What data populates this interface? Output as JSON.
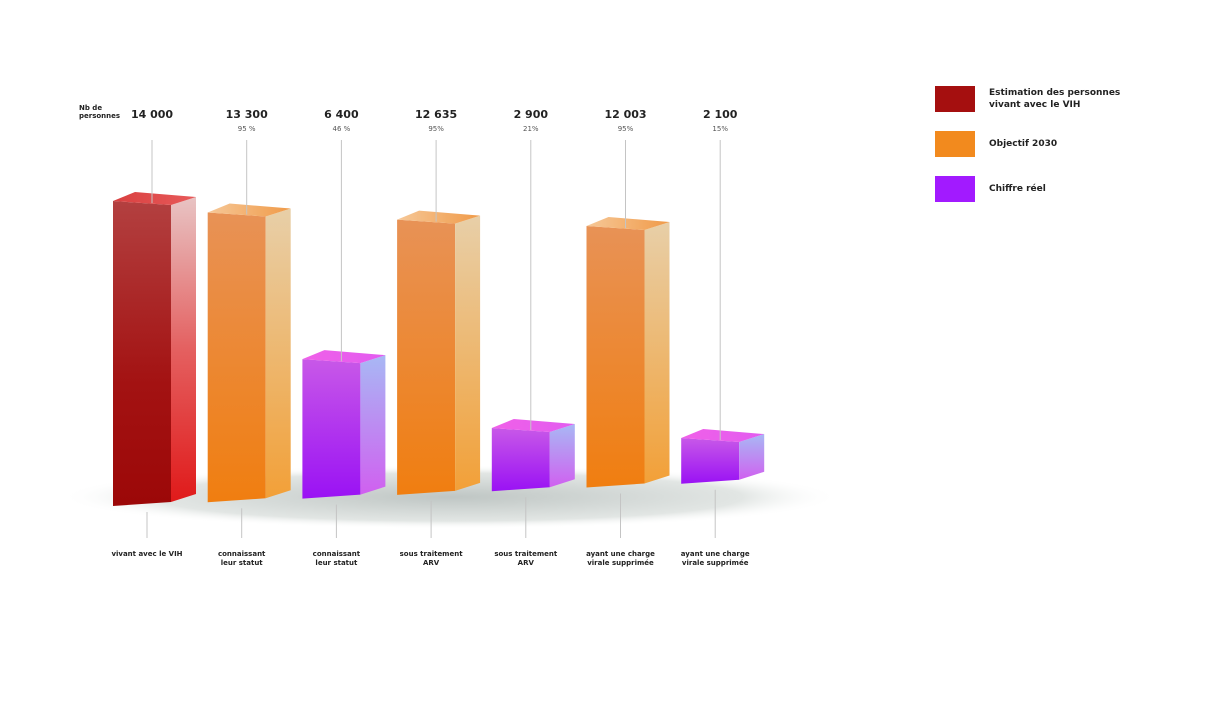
{
  "chart_data": {
    "type": "bar",
    "y_unit_label": "Nb de\npersonnes",
    "categories": [
      "vivant avec le VIH",
      "connaissant\nleur statut",
      "connaissant\nleur statut",
      "sous traitement\nARV",
      "sous traitement\nARV",
      "ayant une charge\nvirale supprimée",
      "ayant une charge\nvirale supprimée"
    ],
    "series_order": [
      "estimation",
      "objectif",
      "reel",
      "objectif",
      "reel",
      "objectif",
      "reel"
    ],
    "values": [
      14000,
      13300,
      6400,
      12635,
      2900,
      12003,
      2100
    ],
    "value_labels": [
      "14 000",
      "13 300",
      "6 400",
      "12 635",
      "2 900",
      "12 003",
      "2 100"
    ],
    "percent_labels": [
      "",
      "95 %",
      "46 %",
      "95%",
      "21%",
      "95%",
      "15%"
    ],
    "ylim": [
      0,
      14000
    ],
    "grid": false,
    "legend_position": "top-right",
    "legend": [
      {
        "key": "estimation",
        "label": "Estimation des personnes\nvivant avec le VIH",
        "color": "#a50f0f"
      },
      {
        "key": "objectif",
        "label": "Objectif 2030",
        "color": "#f28a1e"
      },
      {
        "key": "reel",
        "label": "Chiffre réel",
        "color": "#a21aff"
      }
    ]
  }
}
